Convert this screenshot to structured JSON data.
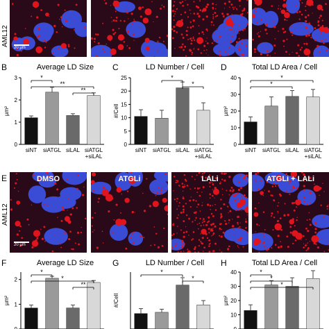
{
  "row1_label": "AML12",
  "row2_label": "AML12",
  "scalebar_row1": "20 µm",
  "scalebar_row2": "20 µm",
  "micrographs_row2": [
    "DMSO",
    "ATGLi",
    "LALi",
    "ATGLi + LALi"
  ],
  "panel_letters": {
    "B": "B",
    "C": "C",
    "D": "D",
    "E": "E",
    "F": "F",
    "G": "G",
    "H": "H"
  },
  "colors": {
    "nucleus": "#3a4bd6",
    "lipid": "#e0141c",
    "cytoplasm": "#2a0a18",
    "bar1": "#111111",
    "bar2": "#9a9a9a",
    "bar3": "#6a6a6a",
    "bar4": "#d8d8d8"
  },
  "chart_data": [
    {
      "id": "B",
      "type": "bar",
      "title": "Average LD Size",
      "ylabel": "µm²",
      "ylim": [
        0,
        3
      ],
      "yticks": [
        "0",
        "1",
        "2",
        "3"
      ],
      "categories": [
        "siNT",
        "siATGL",
        "siLAL",
        "siATGL\n+siLAL"
      ],
      "values": [
        1.2,
        2.35,
        1.3,
        2.2
      ],
      "errors": [
        0.08,
        0.22,
        0.08,
        0.12
      ],
      "sig": [
        {
          "from": 0,
          "to": 1,
          "label": "*"
        },
        {
          "from": 0,
          "to": 3,
          "label": "**"
        },
        {
          "from": 2,
          "to": 3,
          "label": "**"
        }
      ]
    },
    {
      "id": "C",
      "type": "bar",
      "title": "LD Number / Cell",
      "ylabel": "#/Cell",
      "ylim": [
        0,
        25
      ],
      "yticks": [
        "0",
        "5",
        "10",
        "15",
        "20",
        "25"
      ],
      "categories": [
        "siNT",
        "siATGL",
        "siLAL",
        "siATGL\n+siLAL"
      ],
      "values": [
        10.5,
        9.8,
        21.2,
        12.8
      ],
      "errors": [
        2.5,
        3,
        2.2,
        2.8
      ],
      "sig": [
        {
          "from": 1,
          "to": 2,
          "label": "*"
        },
        {
          "from": 2,
          "to": 3,
          "label": "*"
        }
      ]
    },
    {
      "id": "D",
      "type": "bar",
      "title": "Total LD Area / Cell",
      "ylabel": "µm²",
      "ylim": [
        0,
        40
      ],
      "yticks": [
        "0",
        "10",
        "20",
        "30",
        "40"
      ],
      "categories": [
        "siNT",
        "siATGL",
        "siLAL",
        "siATGL\n+siLAL"
      ],
      "values": [
        13.5,
        23,
        28.8,
        28.5
      ],
      "errors": [
        3,
        5.5,
        3.5,
        4.5
      ],
      "sig": [
        {
          "from": 0,
          "to": 3,
          "label": "*"
        },
        {
          "from": 0,
          "to": 2,
          "label": "*"
        }
      ]
    },
    {
      "id": "F",
      "type": "bar",
      "title": "Average LD Size",
      "ylabel": "µm²",
      "ylim": [
        0,
        2.3
      ],
      "yticks": [
        "0",
        "1",
        "2"
      ],
      "categories": [
        "",
        "",
        "",
        ""
      ],
      "values": [
        0.85,
        2.05,
        0.85,
        1.88
      ],
      "errors": [
        0.12,
        0.08,
        0.12,
        0.08
      ],
      "sig": [
        {
          "from": 0,
          "to": 1,
          "label": "*"
        },
        {
          "from": 0,
          "to": 3,
          "label": "*"
        },
        {
          "from": 2,
          "to": 3,
          "label": "**"
        }
      ]
    },
    {
      "id": "G",
      "type": "bar",
      "title": "LD Number / Cell",
      "ylabel": "#/Cell",
      "ylim": [
        0,
        46
      ],
      "yticks": [],
      "categories": [
        "",
        "",
        "",
        ""
      ],
      "values": [
        12.5,
        13.5,
        35.5,
        19.5
      ],
      "errors": [
        4,
        2.5,
        6,
        3.5
      ],
      "sig": [
        {
          "from": 0,
          "to": 2,
          "label": "*"
        },
        {
          "from": 2,
          "to": 3,
          "label": "*"
        }
      ]
    },
    {
      "id": "H",
      "type": "bar",
      "title": "Total LD Area / Cell",
      "ylabel": "µm²",
      "ylim": [
        0,
        40
      ],
      "yticks": [
        "0",
        "10",
        "20",
        "30",
        "40"
      ],
      "categories": [
        "",
        "",
        "",
        ""
      ],
      "values": [
        13,
        31,
        30,
        35.5
      ],
      "errors": [
        4,
        3,
        6,
        5.5
      ],
      "sig": [
        {
          "from": 0,
          "to": 1,
          "label": "*"
        },
        {
          "from": 0,
          "to": 2,
          "label": "*"
        },
        {
          "from": 0,
          "to": 3,
          "label": "*"
        }
      ]
    }
  ]
}
